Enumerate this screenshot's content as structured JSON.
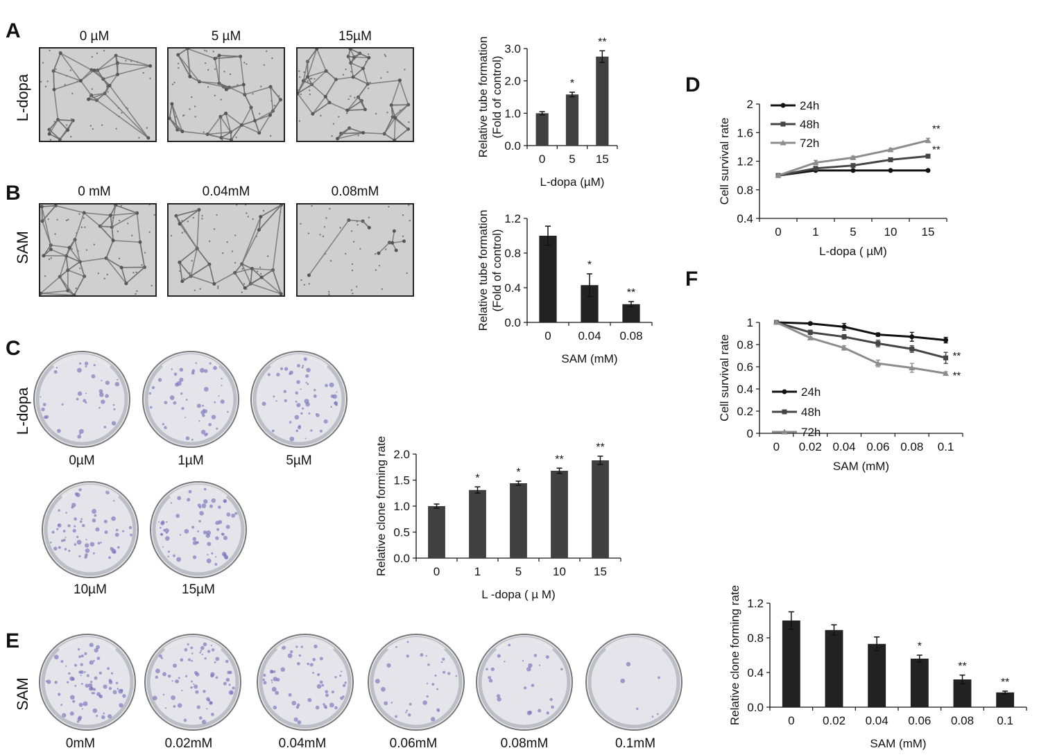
{
  "panel_labels": {
    "A": "A",
    "B": "B",
    "C": "C",
    "D": "D",
    "E": "E",
    "F": "F"
  },
  "rows": {
    "A": {
      "label": "L-dopa",
      "images": [
        "0 µM",
        "5 µM",
        "15µM"
      ]
    },
    "B": {
      "label": "SAM",
      "images": [
        "0 mM",
        "0.04mM",
        "0.08mM"
      ]
    },
    "C": {
      "label": "L-dopa",
      "images": [
        "0µM",
        "1µM",
        "5µM",
        "10µM",
        "15µM"
      ]
    },
    "E": {
      "label": "SAM",
      "images": [
        "0mM",
        "0.02mM",
        "0.04mM",
        "0.06mM",
        "0.08mM",
        "0.1mM"
      ]
    }
  },
  "colors": {
    "bar_dark": "#404040",
    "bar_black": "#222222",
    "line_24h": "#111111",
    "line_48h": "#444444",
    "line_72h": "#8c8c8c",
    "micro_bg": "#cfcfcf",
    "dish_bg": "#e4e4ea",
    "colony": "#7a6fb8"
  },
  "chart_data": [
    {
      "id": "A",
      "type": "bar",
      "categories": [
        "0",
        "5",
        "15"
      ],
      "values": [
        1.0,
        1.58,
        2.75
      ],
      "errors": [
        0.05,
        0.07,
        0.18
      ],
      "sig": [
        "",
        "*",
        "**"
      ],
      "xlabel": "L-dopa (µM)",
      "ylabel": "Relative tube formation (Fold of control)",
      "ylim": [
        0,
        3
      ],
      "yticks": [
        "0.0",
        "1.0",
        "2.0",
        "3.0"
      ],
      "bar_color": "#404040"
    },
    {
      "id": "B",
      "type": "bar",
      "categories": [
        "0",
        "0.04",
        "0.08"
      ],
      "values": [
        1.0,
        0.43,
        0.21
      ],
      "errors": [
        0.11,
        0.13,
        0.03
      ],
      "sig": [
        "",
        "*",
        "**"
      ],
      "xlabel": "SAM (mM)",
      "ylabel": "Relative tube formation (Fold of control)",
      "ylim": [
        0,
        1.2
      ],
      "yticks": [
        "0.0",
        "0.4",
        "0.8",
        "1.2"
      ],
      "bar_color": "#222222"
    },
    {
      "id": "C",
      "type": "bar",
      "categories": [
        "0",
        "1",
        "5",
        "10",
        "15"
      ],
      "values": [
        1.0,
        1.31,
        1.44,
        1.68,
        1.88
      ],
      "errors": [
        0.04,
        0.06,
        0.04,
        0.05,
        0.08
      ],
      "sig": [
        "",
        "*",
        "*",
        "**",
        "**"
      ],
      "xlabel": "L -dopa ( µ M)",
      "ylabel": "Relative clone forming rate",
      "ylim": [
        0,
        2
      ],
      "yticks": [
        "0.0",
        "0.5",
        "1.0",
        "1.5",
        "2.0"
      ],
      "bar_color": "#404040"
    },
    {
      "id": "E",
      "type": "bar",
      "categories": [
        "0",
        "0.02",
        "0.04",
        "0.06",
        "0.08",
        "0.1"
      ],
      "values": [
        1.0,
        0.89,
        0.73,
        0.56,
        0.32,
        0.17
      ],
      "errors": [
        0.1,
        0.06,
        0.08,
        0.04,
        0.05,
        0.015
      ],
      "sig": [
        "",
        "",
        "",
        "*",
        "**",
        "**"
      ],
      "xlabel": "SAM (mM)",
      "ylabel": "Relative clone forming rate",
      "ylim": [
        0,
        1.2
      ],
      "yticks": [
        "0.0",
        "0.4",
        "0.8",
        "1.2"
      ],
      "bar_color": "#222222"
    },
    {
      "id": "D",
      "type": "line",
      "categories": [
        "0",
        "1",
        "5",
        "10",
        "15"
      ],
      "series": [
        {
          "name": "24h",
          "values": [
            1.0,
            1.07,
            1.07,
            1.07,
            1.07
          ],
          "errors": [
            0.01,
            0.01,
            0.01,
            0.01,
            0.01
          ],
          "marker": "circle",
          "color": "#111111"
        },
        {
          "name": "48h",
          "values": [
            1.0,
            1.1,
            1.14,
            1.22,
            1.27
          ],
          "errors": [
            0.01,
            0.01,
            0.01,
            0.01,
            0.015
          ],
          "marker": "square",
          "color": "#444444"
        },
        {
          "name": "72h",
          "values": [
            1.0,
            1.18,
            1.25,
            1.36,
            1.49
          ],
          "errors": [
            0.01,
            0.03,
            0.02,
            0.02,
            0.03
          ],
          "marker": "triangle",
          "color": "#8c8c8c"
        }
      ],
      "sig": [
        "**",
        "**"
      ],
      "xlabel": "L-dopa ( µM)",
      "ylabel": "Cell survival rate",
      "ylim": [
        0.4,
        2
      ],
      "yticks": [
        "0.4",
        "0.8",
        "1.2",
        "1.6",
        "2"
      ]
    },
    {
      "id": "F",
      "type": "line",
      "categories": [
        "0",
        "0.02",
        "0.04",
        "0.06",
        "0.08",
        "0.1"
      ],
      "series": [
        {
          "name": "24h",
          "values": [
            1.0,
            0.99,
            0.96,
            0.89,
            0.87,
            0.84
          ],
          "errors": [
            0.01,
            0.01,
            0.03,
            0.015,
            0.04,
            0.025
          ],
          "marker": "circle",
          "color": "#111111"
        },
        {
          "name": "48h",
          "values": [
            1.0,
            0.91,
            0.87,
            0.81,
            0.76,
            0.68
          ],
          "errors": [
            0.01,
            0.02,
            0.02,
            0.03,
            0.03,
            0.05
          ],
          "marker": "square",
          "color": "#444444"
        },
        {
          "name": "72h",
          "values": [
            1.0,
            0.86,
            0.77,
            0.63,
            0.59,
            0.54
          ],
          "errors": [
            0.01,
            0.01,
            0.02,
            0.03,
            0.04,
            0.015
          ],
          "marker": "triangle",
          "color": "#8c8c8c"
        }
      ],
      "sig": [
        "**",
        "**"
      ],
      "xlabel": "SAM (mM)",
      "ylabel": "Cell survival rate",
      "ylim": [
        0,
        1
      ],
      "yticks": [
        "0",
        "0.2",
        "0.4",
        "0.6",
        "0.8",
        "1"
      ]
    }
  ]
}
